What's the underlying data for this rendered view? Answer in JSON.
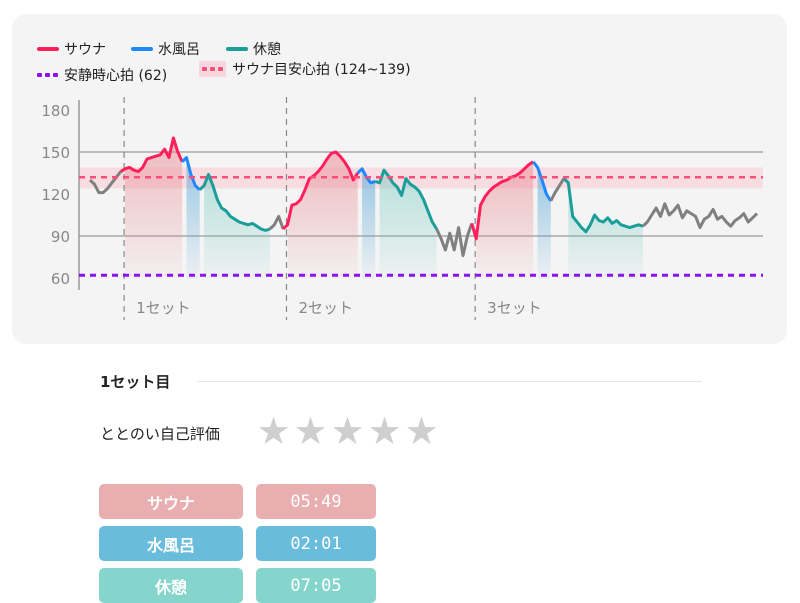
{
  "legend": {
    "sauna": {
      "label": "サウナ",
      "color": "#ff1f5a"
    },
    "cold": {
      "label": "水風呂",
      "color": "#1e88ff"
    },
    "rest": {
      "label": "休憩",
      "color": "#1a9e9a"
    },
    "resting_hr": {
      "label": "安静時心拍 (62)",
      "color": "#8a12f5"
    },
    "target_hr": {
      "label": "サウナ目安心拍 (124~139)",
      "color": "#ff4d7a"
    }
  },
  "chart_data": {
    "type": "line",
    "ylim": [
      60,
      180
    ],
    "yticks": [
      "180",
      "150",
      "120",
      "90",
      "60"
    ],
    "grid_lines": [
      150,
      90
    ],
    "resting_hr": 62,
    "target_band": [
      124,
      139
    ],
    "target_line": 132,
    "other_color": "#808080",
    "set_labels": [
      "1セット",
      "2セット",
      "3セット"
    ],
    "segments": [
      {
        "phase": "other",
        "values": [
          130,
          127,
          121,
          121,
          124,
          128,
          132,
          136
        ]
      },
      {
        "phase": "sauna",
        "set": 0,
        "values": [
          138,
          139,
          137,
          136,
          139,
          145,
          146,
          147,
          148,
          152,
          146,
          160,
          150,
          143
        ]
      },
      {
        "phase": "cold",
        "values": [
          146,
          134,
          126,
          123
        ]
      },
      {
        "phase": "rest",
        "values": [
          126,
          134,
          126,
          116,
          110,
          108,
          104,
          102,
          100,
          99,
          98,
          99,
          97,
          95,
          94,
          95
        ]
      },
      {
        "phase": "other",
        "values": [
          98,
          104,
          95
        ]
      },
      {
        "phase": "sauna",
        "set": 1,
        "values": [
          98,
          112,
          113,
          116,
          123,
          131,
          133,
          136,
          140,
          145,
          149,
          150,
          147,
          143,
          138,
          130,
          135
        ]
      },
      {
        "phase": "cold",
        "values": [
          138,
          132,
          128,
          129
        ]
      },
      {
        "phase": "rest",
        "values": [
          128,
          137,
          133,
          128,
          125,
          119,
          131,
          127,
          125,
          122,
          116,
          108,
          100,
          95
        ]
      },
      {
        "phase": "other",
        "values": [
          88,
          80,
          92,
          80,
          96,
          76,
          90,
          99
        ]
      },
      {
        "phase": "sauna",
        "set": 2,
        "values": [
          88,
          112,
          118,
          122,
          125,
          127,
          129,
          130,
          132,
          133,
          135,
          138,
          141,
          143
        ]
      },
      {
        "phase": "cold",
        "values": [
          139,
          130,
          120,
          115
        ]
      },
      {
        "phase": "other",
        "values": [
          121,
          126,
          131
        ]
      },
      {
        "phase": "rest",
        "values": [
          128,
          104,
          100,
          96,
          93,
          98,
          105,
          101,
          100,
          103,
          99,
          101,
          98,
          97,
          96,
          97,
          98,
          97
        ]
      },
      {
        "phase": "other",
        "values": [
          100,
          105,
          110,
          104,
          113,
          105,
          108,
          112,
          103,
          108,
          106,
          104,
          96,
          102,
          104,
          109,
          102,
          104,
          100,
          97,
          101,
          103,
          106,
          100,
          103,
          106
        ]
      }
    ]
  },
  "set_detail": {
    "title": "1セット目",
    "rating_label": "ととのい自己評価",
    "rating": 0,
    "rating_max": 5,
    "rows": [
      {
        "label": "サウナ",
        "value": "05:49",
        "color": "#e8aeb0"
      },
      {
        "label": "水風呂",
        "value": "02:01",
        "color": "#69bcdb"
      },
      {
        "label": "休憩",
        "value": "07:05",
        "color": "#86d5cc"
      }
    ]
  }
}
